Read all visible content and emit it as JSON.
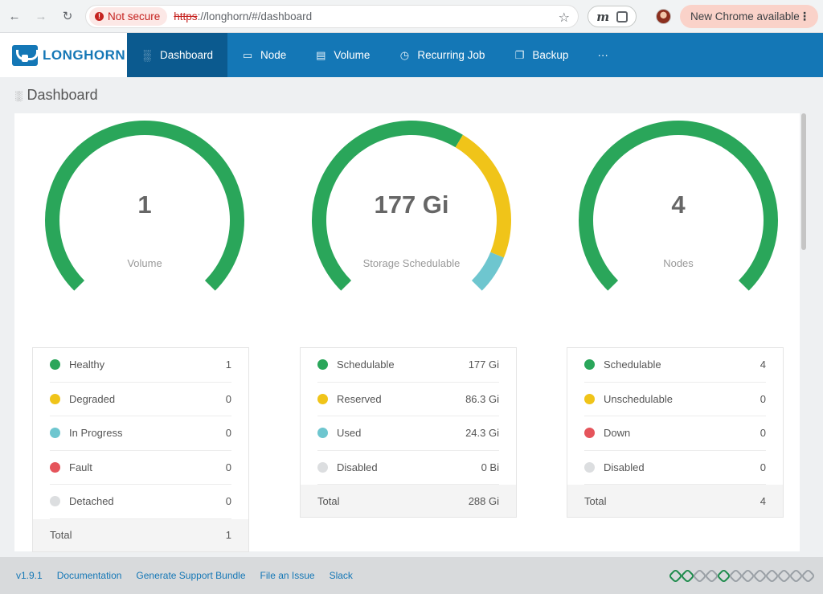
{
  "browser": {
    "secure_label": "Not secure",
    "url_scheme": "https",
    "url_rest": "://longhorn/#/dashboard",
    "update_label": "New Chrome available",
    "ext_label": "m"
  },
  "app": {
    "logo_text": "LONGHORN",
    "nav": [
      {
        "label": "Dashboard",
        "icon": "bar-chart-icon"
      },
      {
        "label": "Node",
        "icon": "laptop-icon"
      },
      {
        "label": "Volume",
        "icon": "hdd-icon"
      },
      {
        "label": "Recurring Job",
        "icon": "clock-icon"
      },
      {
        "label": "Backup",
        "icon": "copy-icon"
      },
      {
        "label": "···",
        "icon": ""
      }
    ]
  },
  "page": {
    "title": "Dashboard"
  },
  "colors": {
    "healthy": "#2aa65a",
    "degraded": "#f0c419",
    "progress": "#6ec6cf",
    "fault": "#e5545b",
    "disabled": "#dcdee0",
    "brand": "#1477b6"
  },
  "gauges": [
    {
      "value": "1",
      "label": "Volume",
      "segments": [
        {
          "fraction": 1.0,
          "color": "#2aa65a"
        }
      ],
      "legend": [
        {
          "label": "Healthy",
          "value": "1",
          "color": "#2aa65a"
        },
        {
          "label": "Degraded",
          "value": "0",
          "color": "#f0c419"
        },
        {
          "label": "In Progress",
          "value": "0",
          "color": "#6ec6cf"
        },
        {
          "label": "Fault",
          "value": "0",
          "color": "#e5545b"
        },
        {
          "label": "Detached",
          "value": "0",
          "color": "#dcdee0"
        }
      ],
      "total_label": "Total",
      "total_value": "1"
    },
    {
      "value": "177 Gi",
      "label": "Storage Schedulable",
      "segments": [
        {
          "fraction": 0.615,
          "color": "#2aa65a"
        },
        {
          "fraction": 0.3,
          "color": "#f0c419"
        },
        {
          "fraction": 0.085,
          "color": "#6ec6cf"
        }
      ],
      "legend": [
        {
          "label": "Schedulable",
          "value": "177 Gi",
          "color": "#2aa65a"
        },
        {
          "label": "Reserved",
          "value": "86.3 Gi",
          "color": "#f0c419"
        },
        {
          "label": "Used",
          "value": "24.3 Gi",
          "color": "#6ec6cf"
        },
        {
          "label": "Disabled",
          "value": "0 Bi",
          "color": "#dcdee0"
        }
      ],
      "total_label": "Total",
      "total_value": "288 Gi"
    },
    {
      "value": "4",
      "label": "Nodes",
      "segments": [
        {
          "fraction": 1.0,
          "color": "#2aa65a"
        }
      ],
      "legend": [
        {
          "label": "Schedulable",
          "value": "4",
          "color": "#2aa65a"
        },
        {
          "label": "Unschedulable",
          "value": "0",
          "color": "#f0c419"
        },
        {
          "label": "Down",
          "value": "0",
          "color": "#e5545b"
        },
        {
          "label": "Disabled",
          "value": "0",
          "color": "#dcdee0"
        }
      ],
      "total_label": "Total",
      "total_value": "4"
    }
  ],
  "footer": {
    "version": "v1.9.1",
    "links": [
      "Documentation",
      "Generate Support Bundle",
      "File an Issue",
      "Slack"
    ],
    "connection_indicators": [
      true,
      true,
      false,
      false,
      true,
      false,
      false,
      false,
      false,
      false,
      false,
      false
    ]
  }
}
